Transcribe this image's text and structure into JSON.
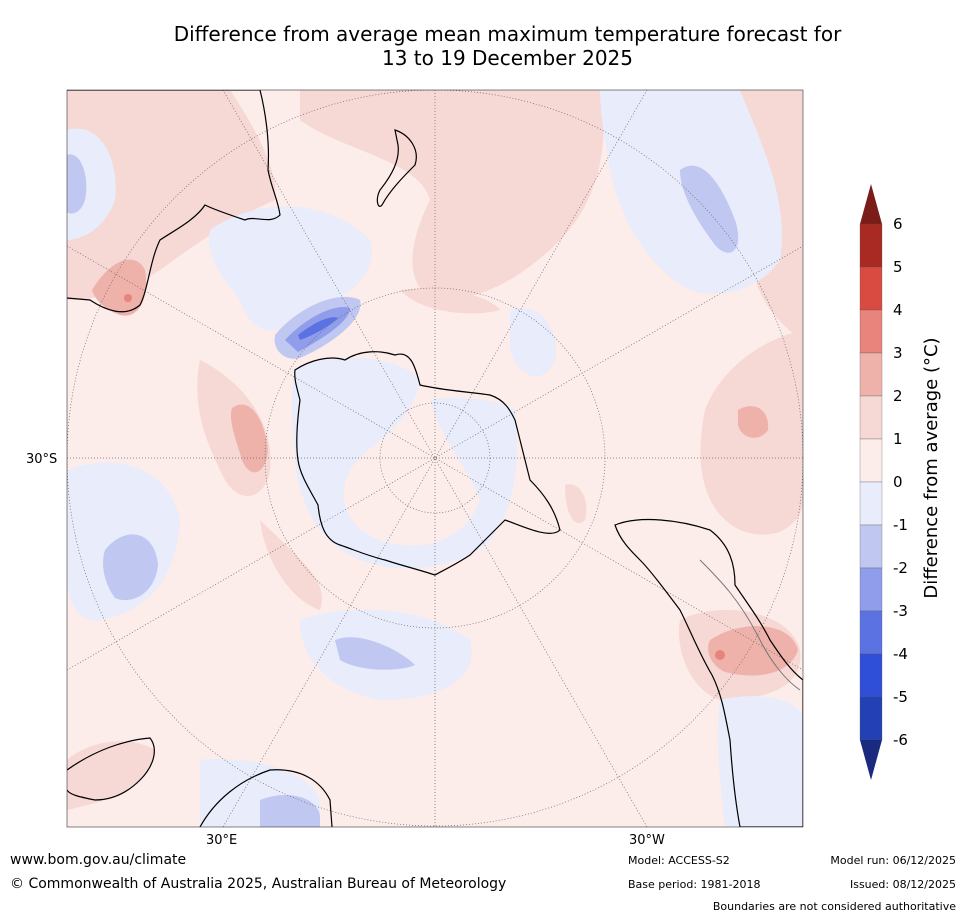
{
  "title": {
    "line1": "Difference from average mean maximum temperature forecast for",
    "line2": "13 to 19 December 2025"
  },
  "map": {
    "latitude_label": "30°S",
    "longitude_labels": [
      "30°E",
      "30°W"
    ]
  },
  "colorbar": {
    "label": "Difference from average (°C)",
    "ticks": [
      "6",
      "5",
      "4",
      "3",
      "2",
      "1",
      "0",
      "-1",
      "-2",
      "-3",
      "-4",
      "-5",
      "-6"
    ],
    "colors": [
      "#7a1c17",
      "#a92a22",
      "#d94a40",
      "#e8847c",
      "#efb2ab",
      "#f6d8d4",
      "#fcecea",
      "#e8ecfb",
      "#c0c8f1",
      "#8f9deb",
      "#5b72e2",
      "#2f4fd8",
      "#2340b4",
      "#1a2a7e"
    ]
  },
  "footer": {
    "website": "www.bom.gov.au/climate",
    "copyright": "© Commonwealth of Australia 2025, Australian Bureau of Meteorology",
    "model": "Model: ACCESS-S2",
    "base_period": "Base period: 1981-2018",
    "model_run": "Model run: 06/12/2025",
    "issued": "Issued: 08/12/2025",
    "disclaimer": "Boundaries are not considered authoritative"
  }
}
